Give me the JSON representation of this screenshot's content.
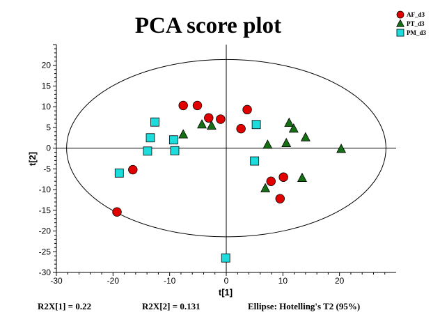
{
  "chart_data": {
    "type": "scatter",
    "title": "PCA score plot",
    "xlabel": "t[1]",
    "ylabel": "t[2]",
    "xlim": [
      -30,
      30
    ],
    "ylim": [
      -30,
      25
    ],
    "xticks": [
      -30,
      -20,
      -10,
      0,
      10,
      20
    ],
    "yticks": [
      -30,
      -25,
      -20,
      -15,
      -10,
      -5,
      0,
      5,
      10,
      15,
      20
    ],
    "grid": false,
    "legend_position": "top-right",
    "ellipse": {
      "center": [
        0,
        0
      ],
      "rx": 28.2,
      "ry": 21.4,
      "label": "Ellipse: Hotelling's T2 (95%)"
    },
    "series": [
      {
        "name": "AF_d3",
        "marker": "circle",
        "color": "#e00000",
        "points": [
          [
            -7.6,
            10.3
          ],
          [
            -5.1,
            10.3
          ],
          [
            -3.1,
            7.3
          ],
          [
            -1.0,
            7.0
          ],
          [
            3.7,
            9.3
          ],
          [
            2.6,
            4.7
          ],
          [
            -16.5,
            -5.2
          ],
          [
            -19.3,
            -15.4
          ],
          [
            7.9,
            -8.0
          ],
          [
            10.1,
            -7.0
          ],
          [
            9.5,
            -12.2
          ]
        ]
      },
      {
        "name": "PT_d3",
        "marker": "triangle",
        "color": "#157015",
        "points": [
          [
            -7.6,
            3.3
          ],
          [
            -4.3,
            5.7
          ],
          [
            -2.6,
            5.4
          ],
          [
            7.3,
            0.8
          ],
          [
            10.6,
            1.2
          ],
          [
            11.1,
            6.1
          ],
          [
            11.9,
            4.7
          ],
          [
            14.0,
            2.6
          ],
          [
            20.3,
            -0.2
          ],
          [
            6.9,
            -9.7
          ],
          [
            13.4,
            -7.2
          ]
        ]
      },
      {
        "name": "PM_d3",
        "marker": "square",
        "color": "#1cdcdc",
        "points": [
          [
            -12.6,
            6.3
          ],
          [
            -13.4,
            2.5
          ],
          [
            -9.3,
            2.0
          ],
          [
            -13.9,
            -0.7
          ],
          [
            -9.1,
            -0.6
          ],
          [
            -18.9,
            -6.0
          ],
          [
            5.3,
            5.7
          ],
          [
            5.0,
            -3.1
          ],
          [
            -0.1,
            -26.5
          ]
        ]
      }
    ],
    "footer": {
      "r2x1": "R2X[1] = 0.22",
      "r2x2": "R2X[2] = 0.131",
      "ellipse_note": "Ellipse: Hotelling's T2 (95%)"
    }
  }
}
